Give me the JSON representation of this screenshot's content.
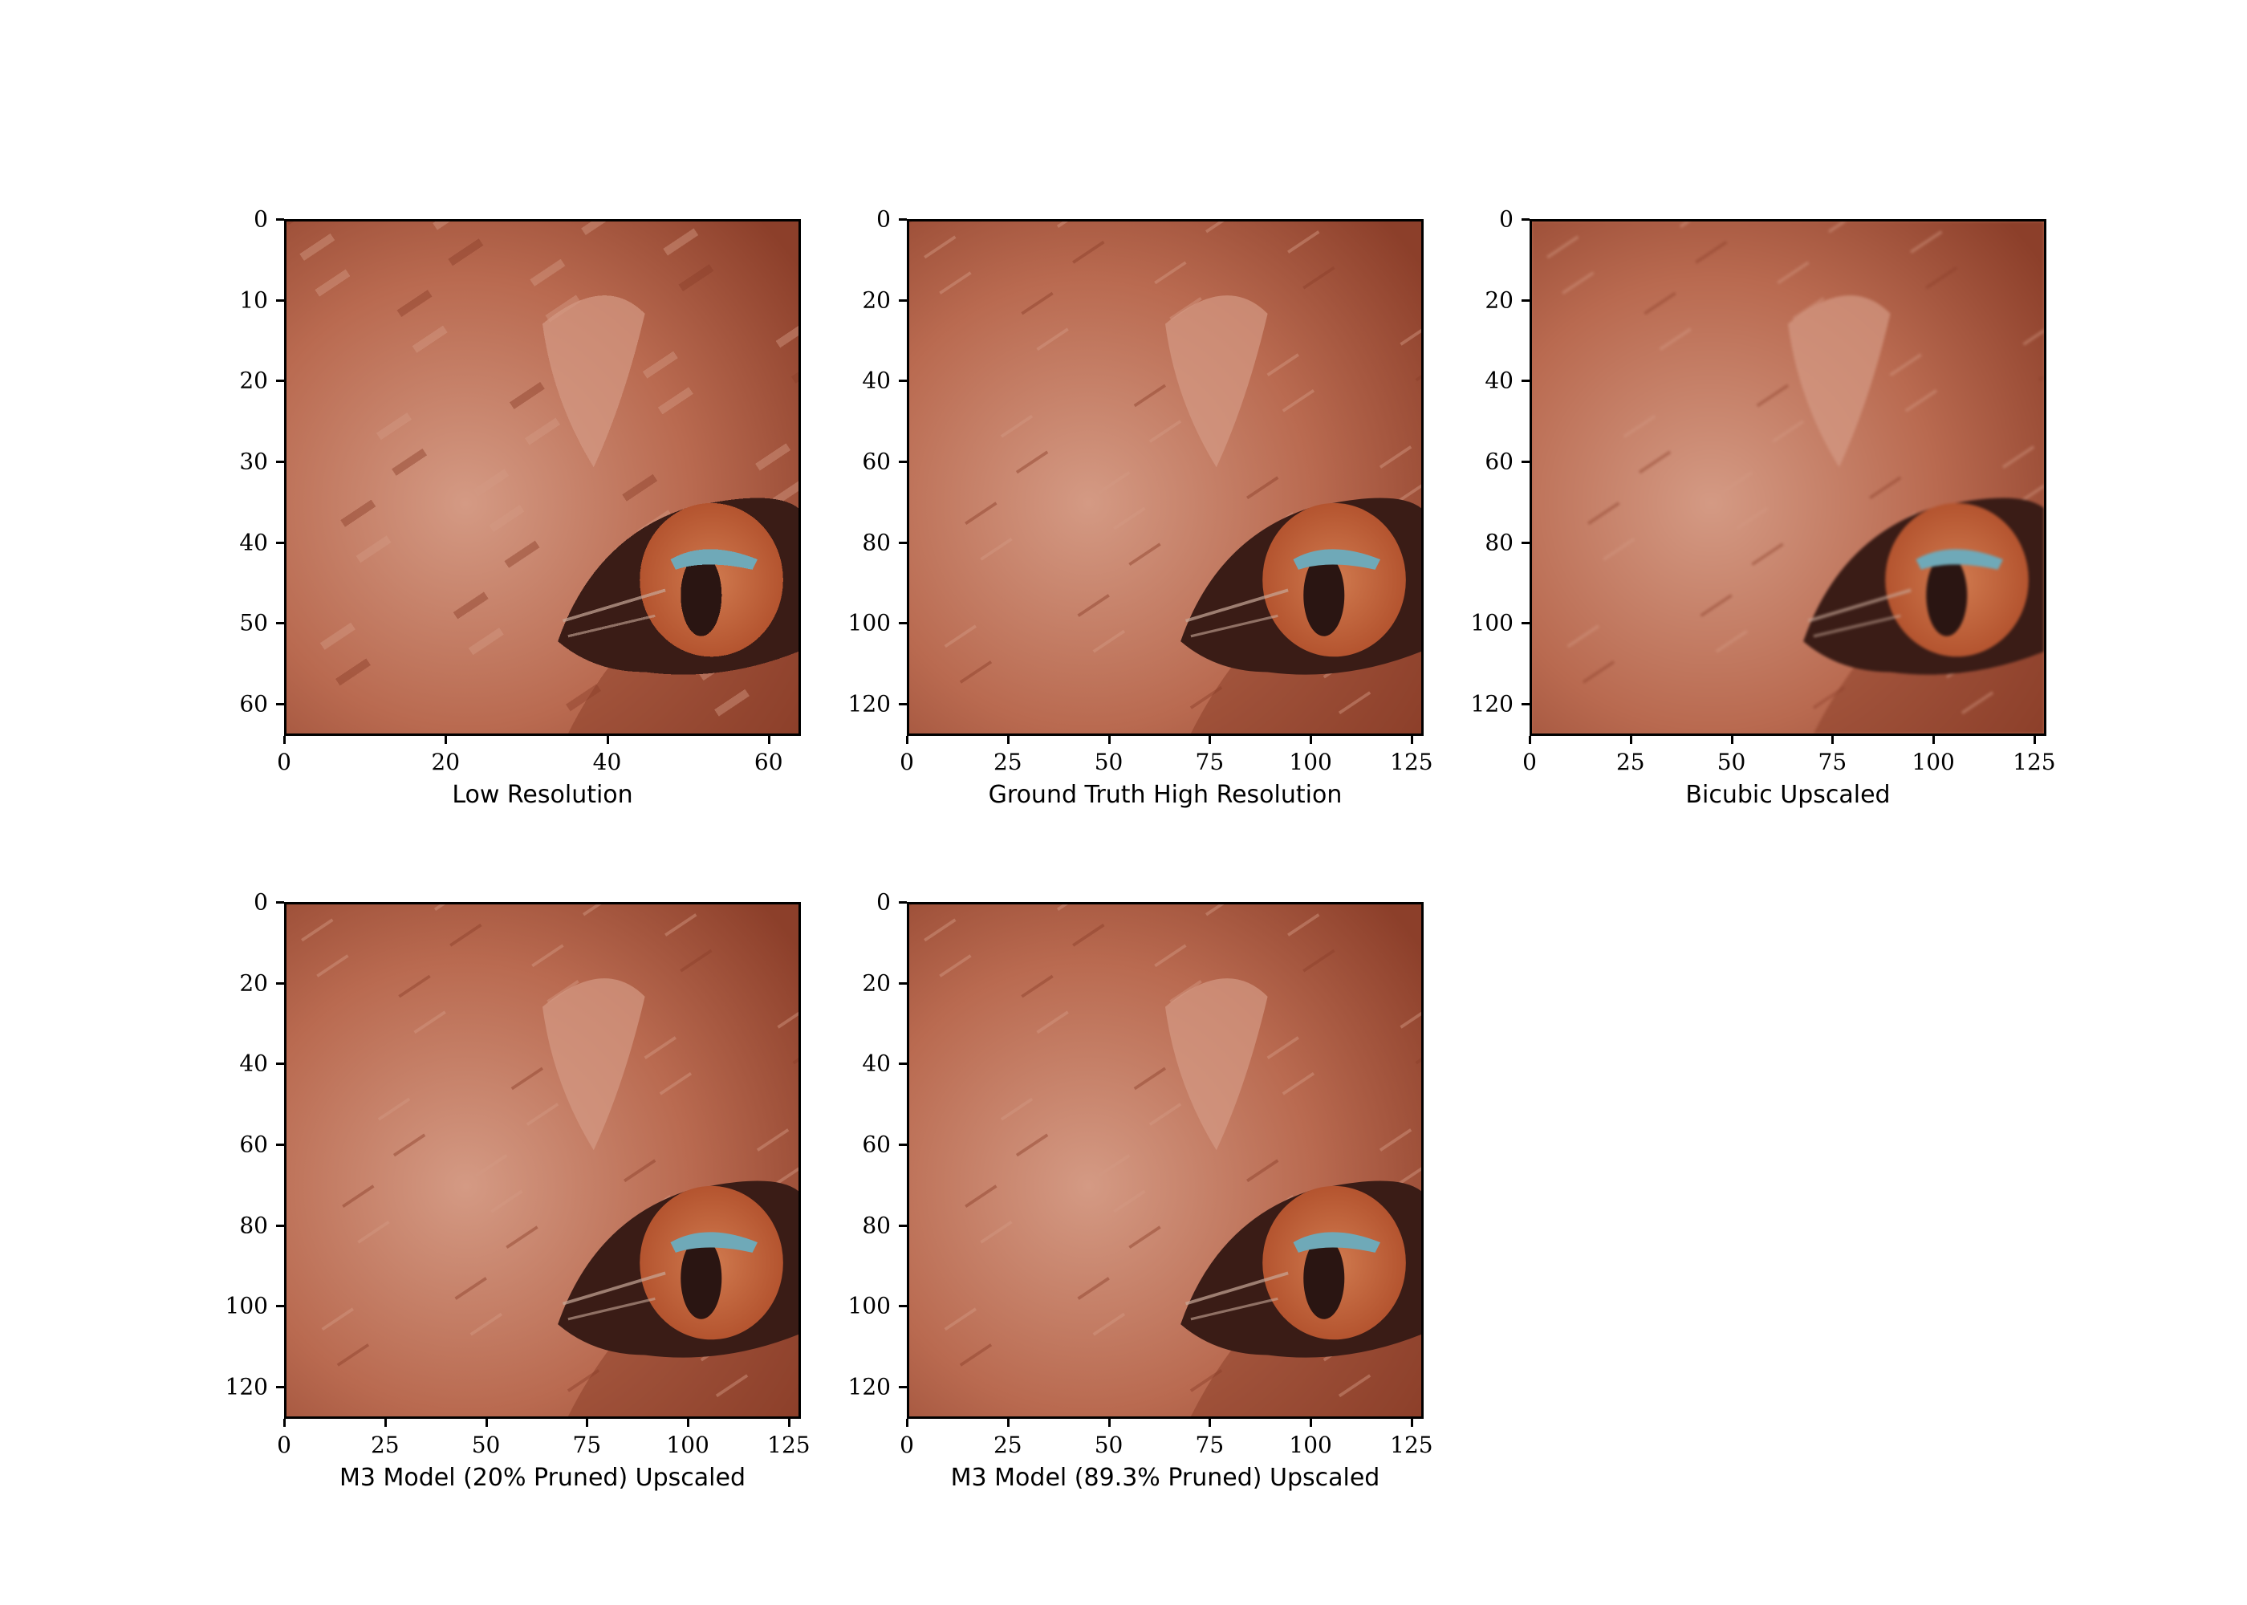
{
  "panels": [
    {
      "caption": "Low Resolution",
      "image_size": 64,
      "x_ticks": [
        0,
        20,
        40,
        60
      ],
      "y_ticks": [
        0,
        10,
        20,
        30,
        40,
        50,
        60
      ],
      "pixelated": true
    },
    {
      "caption": "Ground Truth High Resolution",
      "image_size": 128,
      "x_ticks": [
        0,
        25,
        50,
        75,
        100,
        125
      ],
      "y_ticks": [
        0,
        20,
        40,
        60,
        80,
        100,
        120
      ],
      "pixelated": false
    },
    {
      "caption": "Bicubic Upscaled",
      "image_size": 128,
      "x_ticks": [
        0,
        25,
        50,
        75,
        100,
        125
      ],
      "y_ticks": [
        0,
        20,
        40,
        60,
        80,
        100,
        120
      ],
      "pixelated": false
    },
    {
      "caption": "M3 Model (20% Pruned) Upscaled",
      "image_size": 128,
      "x_ticks": [
        0,
        25,
        50,
        75,
        100,
        125
      ],
      "y_ticks": [
        0,
        20,
        40,
        60,
        80,
        100,
        120
      ],
      "pixelated": false
    },
    {
      "caption": "M3 Model (89.3% Pruned) Upscaled",
      "image_size": 128,
      "x_ticks": [
        0,
        25,
        50,
        75,
        100,
        125
      ],
      "y_ticks": [
        0,
        20,
        40,
        60,
        80,
        100,
        120
      ],
      "pixelated": false
    }
  ],
  "colors": {
    "fur": "#b96a50",
    "fur_light": "#d49a84",
    "fur_dark": "#8c3f2a",
    "eye_ring": "#3a1c16",
    "iris": "#b4542f",
    "pupil": "#2a1512",
    "highlight": "#6fa9b8"
  }
}
